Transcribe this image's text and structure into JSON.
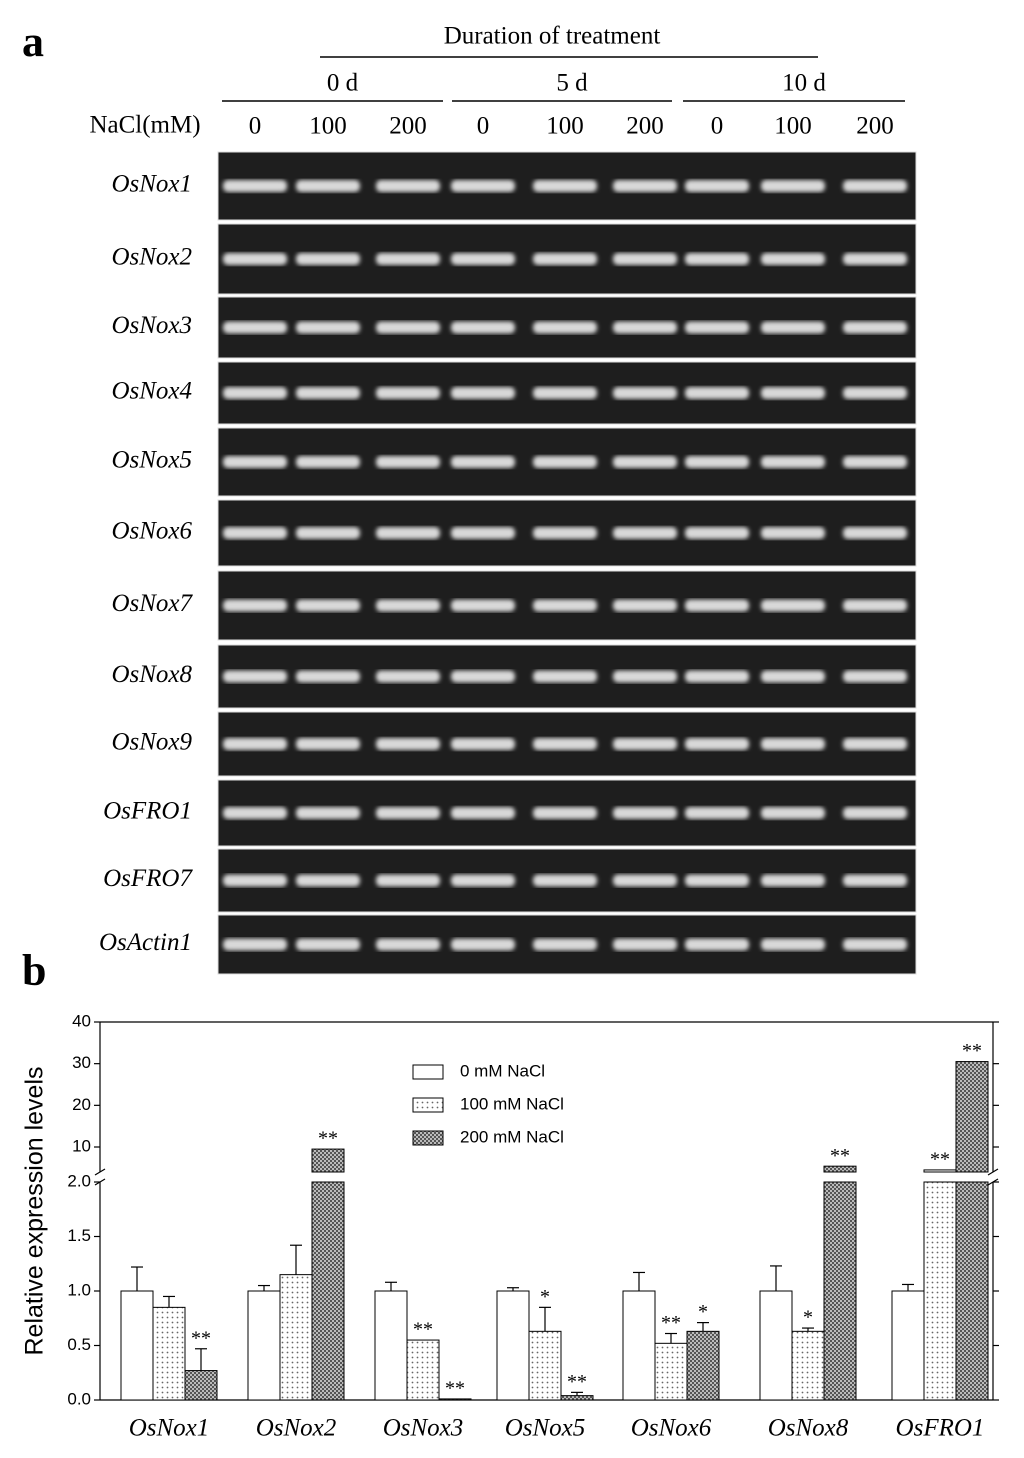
{
  "panel_a": {
    "label": "a",
    "duration_title": "Duration of treatment",
    "durations": [
      "0 d",
      "5 d",
      "10 d"
    ],
    "nacl_label": "NaCl(mM)",
    "concentrations": [
      "0",
      "100",
      "200",
      "0",
      "100",
      "200",
      "0",
      "100",
      "200"
    ],
    "genes": [
      "OsNox1",
      "OsNox2",
      "OsNox3",
      "OsNox4",
      "OsNox5",
      "OsNox6",
      "OsNox7",
      "OsNox8",
      "OsNox9",
      "OsFRO1",
      "OsFRO7",
      "OsActin1"
    ]
  },
  "chart_data": {
    "type": "bar",
    "panel_label": "b",
    "y_label": "Relative expression levels",
    "categories": [
      "OsNox1",
      "OsNox2",
      "OsNox3",
      "OsNox5",
      "OsNox6",
      "OsNox8",
      "OsFRO1"
    ],
    "ylim": [
      0,
      2
    ],
    "yticks": [
      {
        "value": 0,
        "label": "0.0"
      },
      0.5,
      {
        "value": 1,
        "label": "1.0"
      },
      1.5,
      {
        "value": 2,
        "label": "2.0"
      }
    ],
    "ylim_upper": [
      4,
      40
    ],
    "yticks_upper": [
      10,
      20,
      30,
      40
    ],
    "axis_break": true,
    "legend": "top-center",
    "series": [
      {
        "name": "0 mM NaCl",
        "pattern": "none",
        "color": "#ffffff",
        "values": [
          1,
          1,
          1,
          1,
          1,
          1,
          1
        ],
        "errors": [
          0.22,
          0.05,
          0.08,
          0.03,
          0.17,
          0.23,
          0.06
        ],
        "significance": [
          null,
          null,
          null,
          null,
          null,
          null,
          null
        ]
      },
      {
        "name": "100 mM NaCl",
        "pattern": "dots",
        "color": "#ffffff",
        "values": [
          0.85,
          1.15,
          0.55,
          0.63,
          0.52,
          0.63,
          4.5
        ],
        "errors": [
          0.1,
          0.27,
          null,
          0.22,
          0.09,
          0.03,
          null
        ],
        "significance": [
          null,
          null,
          "**",
          "*",
          "**",
          "*",
          "**"
        ]
      },
      {
        "name": "200 mM NaCl",
        "pattern": "crosshatch",
        "color": "#555555",
        "values": [
          0.27,
          9.5,
          0.01,
          0.04,
          0.63,
          5.4,
          30.5
        ],
        "errors": [
          0.2,
          null,
          null,
          0.03,
          0.08,
          null,
          null
        ],
        "significance": [
          "**",
          "**",
          "**",
          "**",
          "*",
          "**",
          "**"
        ]
      }
    ]
  }
}
